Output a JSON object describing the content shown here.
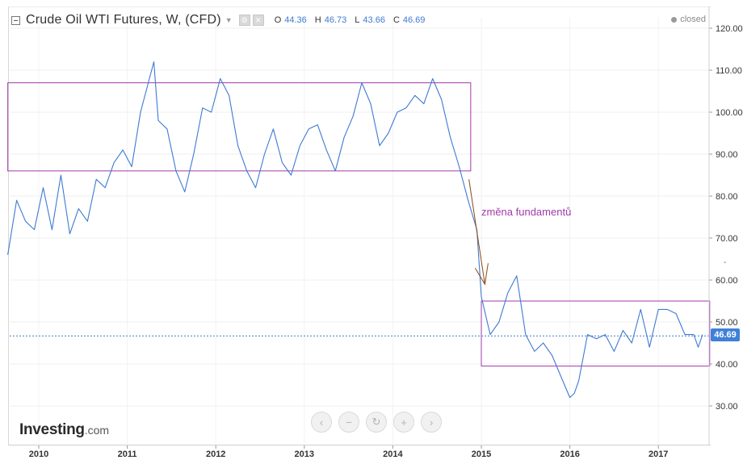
{
  "header": {
    "title": "Crude Oil WTI Futures, W, (CFD)",
    "caret": "▼",
    "ohlc": [
      {
        "label": "O",
        "value": "44.36"
      },
      {
        "label": "H",
        "value": "46.73"
      },
      {
        "label": "L",
        "value": "43.66"
      },
      {
        "label": "C",
        "value": "46.69"
      }
    ]
  },
  "status": {
    "text": "closed"
  },
  "price_badge": {
    "value": "46.69"
  },
  "annotation": {
    "text": "změna fundamentů"
  },
  "logo": {
    "brand": "Investing",
    "tld": ".com"
  },
  "controls": [
    {
      "name": "scroll-left-button",
      "glyph": "‹"
    },
    {
      "name": "zoom-out-button",
      "glyph": "−"
    },
    {
      "name": "reset-button",
      "glyph": "↻"
    },
    {
      "name": "zoom-in-button",
      "glyph": "+"
    },
    {
      "name": "scroll-right-button",
      "glyph": "›"
    }
  ],
  "y_marker": "-",
  "colors": {
    "line": "#3e7ad3",
    "box": "#a23aa8",
    "arrow": "#8b4a12",
    "badge": "#3f80d8",
    "current_line": "#3e7ad3"
  },
  "chart_data": {
    "type": "line",
    "series": [
      {
        "x": [
          2009.65,
          2009.75,
          2009.85,
          2009.95,
          2010.05,
          2010.15,
          2010.25,
          2010.35,
          2010.45,
          2010.55,
          2010.65,
          2010.75,
          2010.85,
          2010.95,
          2011.05,
          2011.15,
          2011.25,
          2011.3,
          2011.35,
          2011.45,
          2011.55,
          2011.65,
          2011.75,
          2011.85,
          2011.95,
          2012.05,
          2012.15,
          2012.25,
          2012.35,
          2012.45,
          2012.55,
          2012.65,
          2012.75,
          2012.85,
          2012.95,
          2013.05,
          2013.15,
          2013.25,
          2013.35,
          2013.45,
          2013.55,
          2013.65,
          2013.75,
          2013.85,
          2013.95,
          2014.05,
          2014.15,
          2014.25,
          2014.35,
          2014.45,
          2014.55,
          2014.65,
          2014.75,
          2014.85,
          2014.95,
          2015.0,
          2015.1,
          2015.2,
          2015.3,
          2015.4,
          2015.5,
          2015.6,
          2015.7,
          2015.8,
          2015.9,
          2016.0,
          2016.05,
          2016.1,
          2016.2,
          2016.3,
          2016.4,
          2016.5,
          2016.6,
          2016.7,
          2016.8,
          2016.9,
          2017.0,
          2017.1,
          2017.2,
          2017.3,
          2017.4,
          2017.45,
          2017.5
        ],
        "y": [
          66,
          79,
          74,
          72,
          82,
          72,
          85,
          71,
          77,
          74,
          84,
          82,
          88,
          91,
          87,
          100,
          108,
          112,
          98,
          96,
          86,
          81,
          90,
          101,
          100,
          108,
          104,
          92,
          86,
          82,
          90,
          96,
          88,
          85,
          92,
          96,
          97,
          91,
          86,
          94,
          99,
          107,
          102,
          92,
          95,
          100,
          101,
          104,
          102,
          108,
          103,
          94,
          87,
          79,
          72,
          56,
          47,
          50,
          57,
          61,
          47,
          43,
          45,
          42,
          37,
          32,
          33,
          36,
          47,
          46,
          47,
          43,
          48,
          45,
          53,
          44,
          53,
          53,
          52,
          47,
          47,
          44,
          47
        ],
        "name": ""
      }
    ],
    "xticks": [
      "2010",
      "2011",
      "2012",
      "2013",
      "2014",
      "2015",
      "2016",
      "2017"
    ],
    "yticks": [
      "30.00",
      "40.00",
      "50.00",
      "60.00",
      "70.00",
      "80.00",
      "90.00",
      "100.00",
      "110.00",
      "120.00"
    ],
    "ylim": [
      25,
      122
    ],
    "xlim": [
      2009.6,
      2017.6
    ],
    "current_price": 46.69,
    "ranges": [
      {
        "x1": 2009.65,
        "x2": 2014.88,
        "y1": 86,
        "y2": 107
      },
      {
        "x1": 2015.0,
        "x2": 2017.58,
        "y1": 39.5,
        "y2": 55
      }
    ],
    "arrow": {
      "from": [
        2014.86,
        84
      ],
      "to": [
        2015.04,
        59
      ]
    }
  }
}
